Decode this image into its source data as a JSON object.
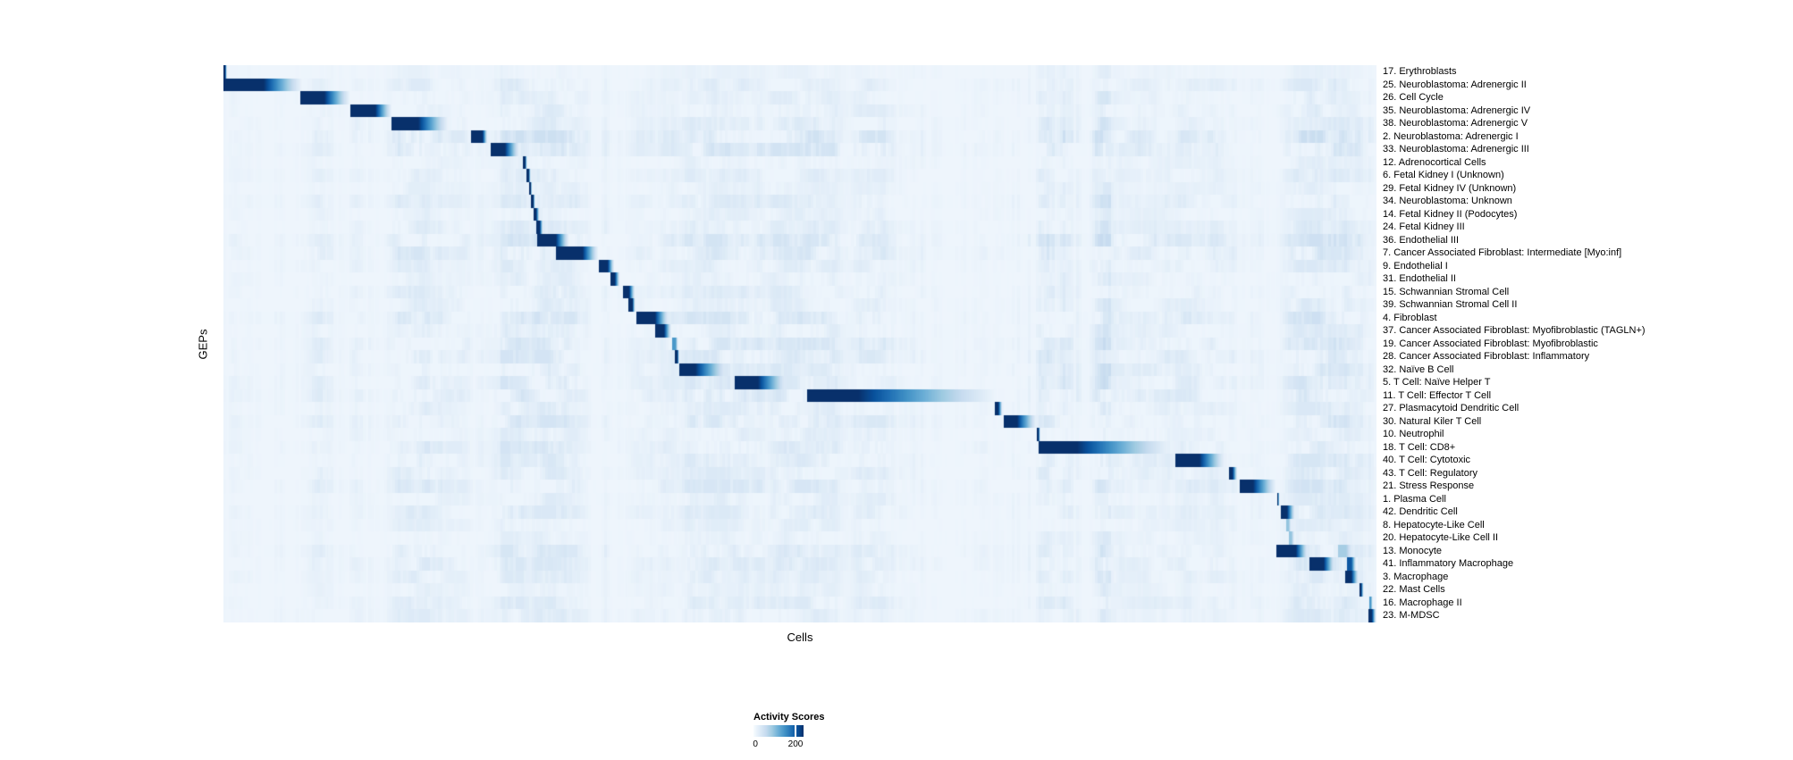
{
  "figure": {
    "x_axis_label": "Cells",
    "y_axis_label": "GEPs",
    "legend": {
      "title": "Activity Scores",
      "tick_labels": [
        "0",
        "200"
      ],
      "tick_positions": [
        0.0,
        0.84
      ]
    }
  },
  "chart_data": {
    "type": "heatmap",
    "title": "",
    "xlabel": "Cells",
    "ylabel": "GEPs",
    "legend_title": "Activity Scores",
    "value_range": [
      0,
      200
    ],
    "colormap": "Blues",
    "colormap_stops": [
      "#f7fbff",
      "#deebf7",
      "#c6dbef",
      "#9ecae1",
      "#6baed6",
      "#4292c6",
      "#2171b5",
      "#08519c",
      "#08306b"
    ],
    "background_value": 0.045,
    "noise_seed": 7,
    "noise_bands": [
      [
        0.0,
        0.09,
        0.35
      ],
      [
        0.09,
        0.19,
        0.5
      ],
      [
        0.19,
        0.24,
        0.3
      ],
      [
        0.24,
        0.35,
        0.55
      ],
      [
        0.35,
        0.4,
        0.35
      ],
      [
        0.4,
        0.53,
        0.5
      ],
      [
        0.53,
        0.63,
        0.45
      ],
      [
        0.63,
        0.68,
        0.3
      ],
      [
        0.68,
        0.77,
        0.85
      ],
      [
        0.77,
        0.87,
        0.4
      ],
      [
        0.87,
        0.92,
        0.5
      ],
      [
        0.92,
        1.01,
        0.6
      ]
    ],
    "rows": [
      {
        "label": "17. Erythroblasts",
        "block": [
          0.0,
          0.0016,
          0.0031
        ],
        "peak": 1,
        "noise": 0.25
      },
      {
        "label": "25. Neuroblastoma: Adrenergic II",
        "block": [
          0.0,
          0.0349,
          0.0713
        ],
        "peak": 1,
        "noise": 0.5
      },
      {
        "label": "26. Cell Cycle",
        "block": [
          0.0667,
          0.0876,
          0.1116
        ],
        "peak": 1,
        "noise": 0.45
      },
      {
        "label": "35. Neuroblastoma: Adrenergic IV",
        "block": [
          0.1101,
          0.1318,
          0.1473
        ],
        "peak": 1,
        "noise": 0.5
      },
      {
        "label": "38. Neuroblastoma: Adrenergic V",
        "block": [
          0.1457,
          0.169,
          0.1977
        ],
        "peak": 1,
        "noise": 0.55
      },
      {
        "label": "2. Neuroblastoma: Adrenergic I",
        "block": [
          0.2147,
          0.2248,
          0.2295
        ],
        "peak": 1,
        "noise": 0.9
      },
      {
        "label": "33. Neuroblastoma: Adrenergic III",
        "block": [
          0.2318,
          0.2442,
          0.2581
        ],
        "peak": 1,
        "noise": 0.85
      },
      {
        "label": "12. Adrenocortical Cells",
        "block": [
          0.2597,
          0.2616,
          0.2636
        ],
        "peak": 1,
        "noise": 0.35
      },
      {
        "label": "6. Fetal Kidney I (Unknown)",
        "block": [
          0.2628,
          0.2647,
          0.2667
        ],
        "peak": 1,
        "noise": 0.5
      },
      {
        "label": "29. Fetal Kidney IV (Unknown)",
        "block": [
          0.2651,
          0.2663,
          0.2678
        ],
        "peak": 1,
        "noise": 0.35
      },
      {
        "label": "34. Neuroblastoma: Unknown",
        "block": [
          0.2667,
          0.2686,
          0.2705
        ],
        "peak": 1,
        "noise": 0.6
      },
      {
        "label": "14. Fetal Kidney II (Podocytes)",
        "block": [
          0.269,
          0.2713,
          0.2744
        ],
        "peak": 1,
        "noise": 0.4
      },
      {
        "label": "24. Fetal Kidney III",
        "block": [
          0.2713,
          0.2744,
          0.2775
        ],
        "peak": 1,
        "noise": 0.55
      },
      {
        "label": "36. Endothelial III",
        "block": [
          0.2721,
          0.2884,
          0.3008
        ],
        "peak": 1,
        "noise": 0.8
      },
      {
        "label": "7. Cancer Associated Fibroblast: Intermediate [Myo:inf]",
        "block": [
          0.2884,
          0.3116,
          0.3264
        ],
        "peak": 1,
        "noise": 0.75
      },
      {
        "label": "9. Endothelial I",
        "block": [
          0.3256,
          0.3333,
          0.3395
        ],
        "peak": 1,
        "noise": 0.5
      },
      {
        "label": "31. Endothelial II",
        "block": [
          0.3357,
          0.3395,
          0.3442
        ],
        "peak": 1,
        "noise": 0.45
      },
      {
        "label": "15. Schwannian Stromal Cell",
        "block": [
          0.3465,
          0.3519,
          0.3574
        ],
        "peak": 1,
        "noise": 0.55
      },
      {
        "label": "39. Schwannian Stromal Cell II",
        "block": [
          0.3512,
          0.3547,
          0.3574
        ],
        "peak": 1,
        "noise": 0.5
      },
      {
        "label": "4. Fibroblast",
        "block": [
          0.3581,
          0.3744,
          0.3876
        ],
        "peak": 1,
        "noise": 0.8
      },
      {
        "label": "37. Cancer Associated Fibroblast: Myofibroblastic (TAGLN+)",
        "block": [
          0.3744,
          0.3822,
          0.3891
        ],
        "peak": 1,
        "noise": 0.5
      },
      {
        "label": "19. Cancer Associated Fibroblast: Myofibroblastic",
        "block": [
          0.3891,
          0.3922,
          0.3946
        ],
        "peak": 0.6,
        "noise": 0.75
      },
      {
        "label": "28. Cancer Associated Fibroblast: Inflammatory",
        "block": [
          0.3915,
          0.3938,
          0.3954
        ],
        "peak": 1,
        "noise": 0.7
      },
      {
        "label": "32. Naïve B Cell",
        "block": [
          0.3954,
          0.4093,
          0.4403
        ],
        "peak": 1,
        "noise": 0.65
      },
      {
        "label": "5. T Cell: Naïve Helper T",
        "block": [
          0.4434,
          0.4636,
          0.4915
        ],
        "peak": 1,
        "noise": 0.7
      },
      {
        "label": "11. T Cell: Effector T Cell",
        "block": [
          0.5062,
          0.5504,
          0.6806
        ],
        "peak": 1,
        "noise": 0.75
      },
      {
        "label": "27. Plasmacytoid Dendritic Cell",
        "block": [
          0.669,
          0.6721,
          0.676
        ],
        "peak": 1,
        "noise": 0.5
      },
      {
        "label": "30. Natural Kiler T Cell",
        "block": [
          0.6767,
          0.6884,
          0.707
        ],
        "peak": 1,
        "noise": 0.7
      },
      {
        "label": "10. Neutrophil",
        "block": [
          0.7054,
          0.707,
          0.7085
        ],
        "peak": 1,
        "noise": 0.45
      },
      {
        "label": "18. T Cell: CD8+",
        "block": [
          0.707,
          0.7403,
          0.8295
        ],
        "peak": 1,
        "noise": 0.7
      },
      {
        "label": "40. T Cell: Cytotoxic",
        "block": [
          0.8256,
          0.8465,
          0.8705
        ],
        "peak": 1,
        "noise": 0.6
      },
      {
        "label": "43. T Cell: Regulatory",
        "block": [
          0.8721,
          0.8752,
          0.8798
        ],
        "peak": 1,
        "noise": 0.55
      },
      {
        "label": "21. Stress Response",
        "block": [
          0.8813,
          0.893,
          0.9147
        ],
        "peak": 1,
        "noise": 0.7
      },
      {
        "label": "1. Plasma Cell",
        "block": [
          0.914,
          0.9147,
          0.9158
        ],
        "peak": 1,
        "noise": 0.45
      },
      {
        "label": "42. Dendritic Cell",
        "block": [
          0.9171,
          0.9225,
          0.9302
        ],
        "peak": 1,
        "noise": 0.55
      },
      {
        "label": "8. Hepatocyte-Like Cell",
        "block": [
          0.9217,
          0.924,
          0.9264
        ],
        "peak": 0.4,
        "noise": 0.4
      },
      {
        "label": "20. Hepatocyte-Like Cell II",
        "block": [
          0.924,
          0.9264,
          0.9295
        ],
        "peak": 0.4,
        "noise": 0.35
      },
      {
        "label": "13. Monocyte",
        "block": [
          0.9132,
          0.9302,
          0.9419
        ],
        "peak": 1,
        "noise": 0.65,
        "block2": [
          0.9667,
          0.9737,
          0.9814
        ],
        "peak2": 0.35
      },
      {
        "label": "41. Inflammatory Macrophage",
        "block": [
          0.9419,
          0.9543,
          0.9651
        ],
        "peak": 1,
        "noise": 0.6,
        "block2": [
          0.9744,
          0.9783,
          0.9829
        ],
        "peak2": 0.85
      },
      {
        "label": "3. Macrophage",
        "block": [
          0.9729,
          0.9783,
          0.9853
        ],
        "peak": 1,
        "noise": 0.5
      },
      {
        "label": "22. Mast Cells",
        "block": [
          0.9853,
          0.9868,
          0.9891
        ],
        "peak": 1,
        "noise": 0.35
      },
      {
        "label": "16. Macrophage II",
        "block": [
          0.9938,
          0.9953,
          0.9969
        ],
        "peak": 0.6,
        "noise": 0.55
      },
      {
        "label": "23. M-MDSC",
        "block": [
          0.993,
          0.9961,
          1.0
        ],
        "peak": 1,
        "noise": 0.5
      }
    ]
  }
}
